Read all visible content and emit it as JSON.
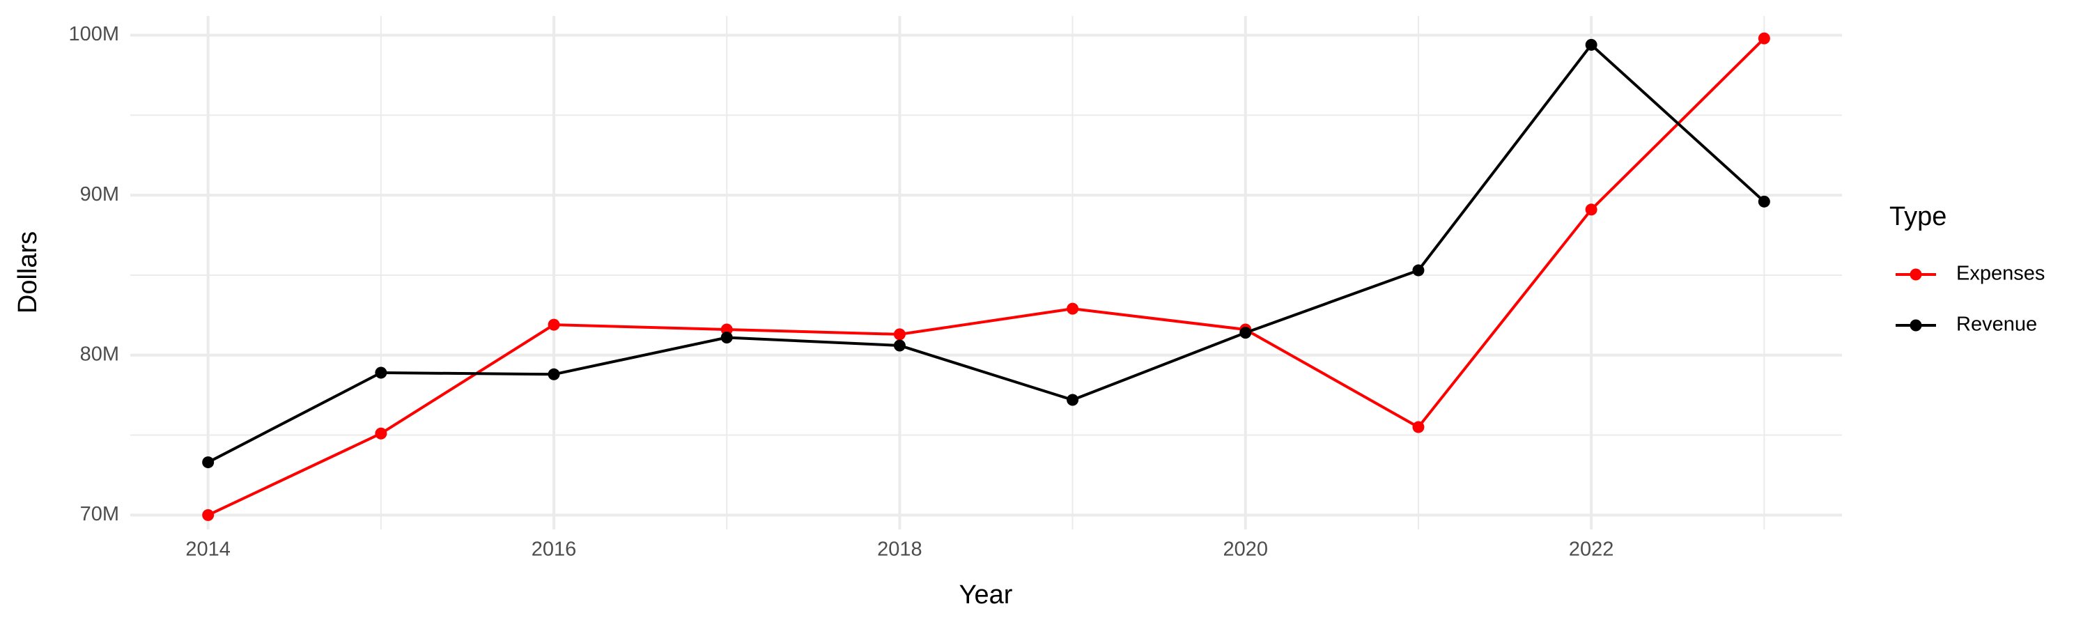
{
  "chart_data": {
    "type": "line",
    "x_label": "Year",
    "y_label": "Dollars",
    "legend_title": "Type",
    "legend_position": "right",
    "grid": true,
    "x": [
      2014,
      2015,
      2016,
      2017,
      2018,
      2019,
      2020,
      2021,
      2022,
      2023
    ],
    "series": [
      {
        "name": "Expenses",
        "color": "#ff0000",
        "values": [
          70000000,
          75100000,
          81900000,
          81600000,
          81300000,
          82900000,
          81600000,
          75500000,
          89100000,
          99800000
        ]
      },
      {
        "name": "Revenue",
        "color": "#000000",
        "values": [
          73300000,
          78900000,
          78800000,
          81100000,
          80600000,
          77200000,
          81400000,
          85300000,
          99400000,
          89600000
        ]
      }
    ],
    "xlim": [
      2013.55,
      2023.45
    ],
    "ylim": [
      69100000,
      101200000
    ],
    "xticks": [
      2014,
      2016,
      2018,
      2020,
      2022
    ],
    "yticks": [
      {
        "value": 70000000,
        "label": "70M"
      },
      {
        "value": 80000000,
        "label": "80M"
      },
      {
        "value": 90000000,
        "label": "90M"
      },
      {
        "value": 100000000,
        "label": "100M"
      }
    ]
  }
}
